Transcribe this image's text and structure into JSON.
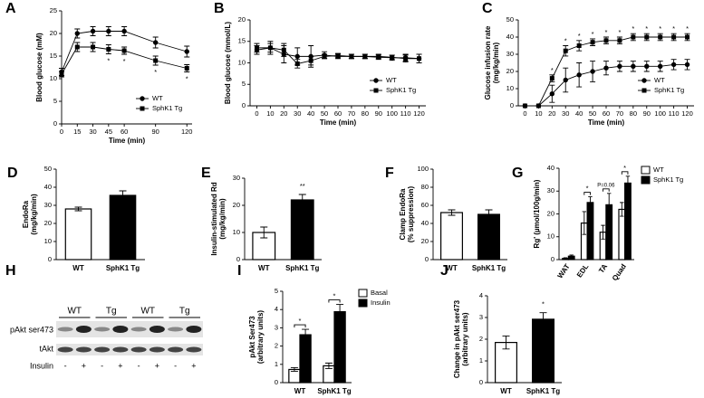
{
  "chart_data": [
    {
      "type": "line",
      "panel": "A",
      "ylabel": [
        "Blood glucose (mM)"
      ],
      "xlabel": "Time (min)",
      "x": [
        0,
        15,
        30,
        45,
        60,
        90,
        120
      ],
      "xlim": [
        0,
        125
      ],
      "xticks": [
        0,
        15,
        30,
        45,
        60,
        90,
        120
      ],
      "ylim": [
        0,
        25
      ],
      "yticks": [
        0,
        5,
        10,
        15,
        20,
        25
      ],
      "legend": "lower right",
      "series": [
        {
          "name": "WT",
          "color": "#000000",
          "marker": "circle",
          "values": [
            11.5,
            20,
            20.5,
            20.5,
            20.5,
            18,
            16
          ],
          "errors": [
            0.8,
            1,
            1,
            1,
            1,
            1.2,
            1.2
          ]
        },
        {
          "name": "SphK1 Tg",
          "color": "#000000",
          "marker": "square",
          "values": [
            11,
            17,
            17,
            16.5,
            16.2,
            14,
            12.3
          ],
          "errors": [
            0.6,
            1,
            1,
            1,
            0.8,
            1,
            0.8
          ]
        }
      ],
      "annotations": [
        null,
        null,
        null,
        "*",
        "*",
        "*",
        "*"
      ]
    },
    {
      "type": "line",
      "panel": "B",
      "ylabel": [
        "Blood glucose (mmol/L)"
      ],
      "xlabel": "Time (min)",
      "x": [
        0,
        10,
        20,
        30,
        40,
        50,
        60,
        70,
        80,
        90,
        100,
        110,
        120
      ],
      "xlim": [
        -5,
        125
      ],
      "xticks": [
        0,
        10,
        20,
        30,
        40,
        50,
        60,
        70,
        80,
        90,
        100,
        110,
        120
      ],
      "ylim": [
        0,
        20
      ],
      "yticks": [
        0,
        5,
        10,
        15,
        20
      ],
      "legend": "lower right",
      "series": [
        {
          "name": "WT",
          "color": "#000000",
          "marker": "circle",
          "values": [
            13,
            13.5,
            12,
            11.5,
            11.5,
            11.8,
            11.5,
            11.5,
            11.5,
            11.3,
            11.2,
            11.2,
            11
          ],
          "errors": [
            1,
            1.5,
            2,
            2,
            2.5,
            0.8,
            0.5,
            0.5,
            0.5,
            0.5,
            0.6,
            0.8,
            1
          ]
        },
        {
          "name": "SphK1 Tg",
          "color": "#000000",
          "marker": "square",
          "values": [
            13.5,
            13.5,
            13,
            9.8,
            10.5,
            11.5,
            11.7,
            11.5,
            11.5,
            11.5,
            11.3,
            11,
            11
          ],
          "errors": [
            1,
            1,
            1.5,
            1,
            1,
            0.5,
            0.5,
            0.5,
            0.5,
            0.5,
            0.5,
            0.8,
            1
          ]
        }
      ]
    },
    {
      "type": "line",
      "panel": "C",
      "ylabel": [
        "Glucose infusion rate",
        "(mg/kg/min)"
      ],
      "xlabel": "Time (min)",
      "x": [
        0,
        10,
        20,
        30,
        40,
        50,
        60,
        70,
        80,
        90,
        100,
        110,
        120
      ],
      "xlim": [
        -5,
        125
      ],
      "xticks": [
        0,
        10,
        20,
        30,
        40,
        50,
        60,
        70,
        80,
        90,
        100,
        110,
        120
      ],
      "ylim": [
        0,
        50
      ],
      "yticks": [
        0,
        10,
        20,
        30,
        40,
        50
      ],
      "legend": "lower right",
      "series": [
        {
          "name": "WT",
          "color": "#000000",
          "marker": "circle",
          "values": [
            0,
            0,
            7,
            15,
            18,
            20,
            22,
            23,
            23,
            23,
            23,
            24,
            24
          ],
          "errors": [
            0,
            0,
            5,
            7,
            7,
            6,
            4,
            3,
            3,
            3,
            3,
            3,
            3
          ]
        },
        {
          "name": "SphK1 Tg",
          "color": "#000000",
          "marker": "square",
          "values": [
            0,
            0,
            16,
            32,
            35,
            37,
            38,
            38,
            40,
            40,
            40,
            40,
            40
          ],
          "errors": [
            0,
            0,
            2,
            3,
            3,
            2,
            2,
            2,
            2,
            2,
            2,
            2,
            2
          ]
        }
      ],
      "annotations": [
        null,
        null,
        "*",
        "*",
        "*",
        "*",
        "*",
        "*",
        "*",
        "*",
        "*",
        "*",
        "*"
      ]
    },
    {
      "type": "bar",
      "panel": "D",
      "ylabel": [
        "EndoRa",
        "(mg/kg/min)"
      ],
      "categories": [
        "WT",
        "SphK1 Tg"
      ],
      "values": [
        28,
        35.5
      ],
      "errors": [
        1,
        2.5
      ],
      "colors": [
        "#ffffff",
        "#000000"
      ],
      "ylim": [
        0,
        50
      ],
      "yticks": [
        0,
        10,
        20,
        30,
        40,
        50
      ]
    },
    {
      "type": "bar",
      "panel": "E",
      "ylabel": [
        "Insulin-stimulated Rd",
        "(mg/kg/min)"
      ],
      "categories": [
        "WT",
        "SphK1 Tg"
      ],
      "values": [
        10,
        22
      ],
      "errors": [
        2,
        2
      ],
      "colors": [
        "#ffffff",
        "#000000"
      ],
      "ylim": [
        0,
        30
      ],
      "yticks": [
        0,
        10,
        20,
        30
      ],
      "annotations": [
        null,
        "**"
      ]
    },
    {
      "type": "bar",
      "panel": "F",
      "ylabel": [
        "Clamp EndoRa",
        "(% suppression)"
      ],
      "categories": [
        "WT",
        "SphK1 Tg"
      ],
      "values": [
        52,
        50
      ],
      "errors": [
        3,
        5
      ],
      "colors": [
        "#ffffff",
        "#000000"
      ],
      "ylim": [
        0,
        100
      ],
      "yticks": [
        0,
        20,
        40,
        60,
        80,
        100
      ]
    },
    {
      "type": "bar",
      "panel": "G",
      "ylabel": [
        "Rg' (µmol/100g/min)"
      ],
      "categories": [
        "WAT",
        "EDL",
        "TA",
        "Quad"
      ],
      "ylim": [
        0,
        40
      ],
      "yticks": [
        0,
        10,
        20,
        30,
        40
      ],
      "legend": "upper right",
      "rotate_categories": true,
      "series": [
        {
          "name": "WT",
          "color": "#ffffff",
          "values": [
            0.5,
            16,
            12,
            22
          ],
          "errors": [
            0.3,
            5,
            3,
            3
          ]
        },
        {
          "name": "SphK1 Tg",
          "color": "#000000",
          "values": [
            1.5,
            25,
            24,
            33.5
          ],
          "errors": [
            0.5,
            2.5,
            5,
            3
          ]
        }
      ],
      "annotations": [
        null,
        "*",
        "P=0.06",
        "*"
      ]
    },
    {
      "type": "bar",
      "panel": "I",
      "ylabel": [
        "pAkt Ser473",
        "(arbitrary units)"
      ],
      "categories": [
        "WT",
        "SphK1 Tg"
      ],
      "ylim": [
        0,
        5
      ],
      "yticks": [
        0,
        1,
        2,
        3,
        4,
        5
      ],
      "legend": "upper right",
      "series": [
        {
          "name": "Basal",
          "color": "#ffffff",
          "values": [
            0.72,
            0.92
          ],
          "errors": [
            0.1,
            0.15
          ]
        },
        {
          "name": "Insulin",
          "color": "#000000",
          "values": [
            2.62,
            3.88
          ],
          "errors": [
            0.3,
            0.4
          ]
        }
      ],
      "annotations": [
        "*",
        "*"
      ]
    },
    {
      "type": "bar",
      "panel": "J",
      "ylabel": [
        "Change in pAkt ser473",
        "(arbitrary units)"
      ],
      "categories": [
        "WT",
        "SphK1 Tg"
      ],
      "values": [
        1.85,
        2.92
      ],
      "errors": [
        0.3,
        0.3
      ],
      "colors": [
        "#ffffff",
        "#000000"
      ],
      "ylim": [
        0,
        4
      ],
      "yticks": [
        0,
        1,
        2,
        3,
        4
      ],
      "annotations": [
        null,
        "*"
      ]
    }
  ],
  "blot": {
    "panel": "H",
    "lanes": [
      "WT",
      "Tg",
      "WT",
      "Tg"
    ],
    "rows": [
      "pAkt ser473",
      "tAkt"
    ],
    "treatment": "Insulin",
    "signs": [
      "-",
      "+",
      "-",
      "+",
      "-",
      "+",
      "-",
      "+"
    ]
  }
}
